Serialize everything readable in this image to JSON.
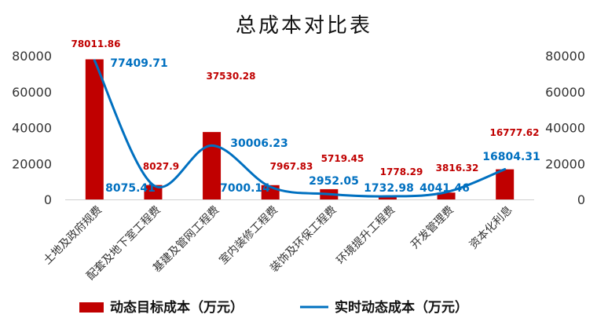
{
  "chart_data": {
    "type": "bar",
    "title": "总成本对比表",
    "categories": [
      "土地及政府规费",
      "配套及地下室工程费",
      "基建及管网工程费",
      "室内装修工程费",
      "装饰及环保工程费",
      "环境提升工程费",
      "开发管理费",
      "资本化利息"
    ],
    "series": [
      {
        "name": "动态目标成本（万元）",
        "type": "bar",
        "axis": "left",
        "color": "#c00000",
        "label_color": "#c00000",
        "values": [
          78011.86,
          8027.9,
          37530.28,
          7967.83,
          5719.45,
          1778.29,
          3816.32,
          16777.62
        ],
        "labels": [
          "78011.86",
          "8027.9",
          "37530.28",
          "7967.83",
          "5719.45",
          "1778.29",
          "3816.32",
          "16777.62"
        ]
      },
      {
        "name": "实时动态成本（万元）",
        "type": "line",
        "smooth": true,
        "axis": "right",
        "color": "#0070c0",
        "label_color": "#0070c0",
        "values": [
          77409.71,
          8075.41,
          30006.23,
          7000.14,
          2952.05,
          1732.98,
          4041.46,
          16804.31
        ],
        "labels": [
          "77409.71",
          "8075.41",
          "30006.23",
          "7000.14",
          "2952.05",
          "1732.98",
          "4041.46",
          "16804.31"
        ]
      }
    ],
    "y_left": {
      "ylim": [
        0,
        80000
      ],
      "ticks": [
        "0",
        "20000",
        "40000",
        "60000",
        "80000"
      ]
    },
    "y_right": {
      "ylim": [
        0,
        80000
      ],
      "ticks": [
        "0",
        "20000",
        "40000",
        "60000",
        "80000"
      ]
    },
    "grid": false,
    "legend_position": "bottom"
  }
}
